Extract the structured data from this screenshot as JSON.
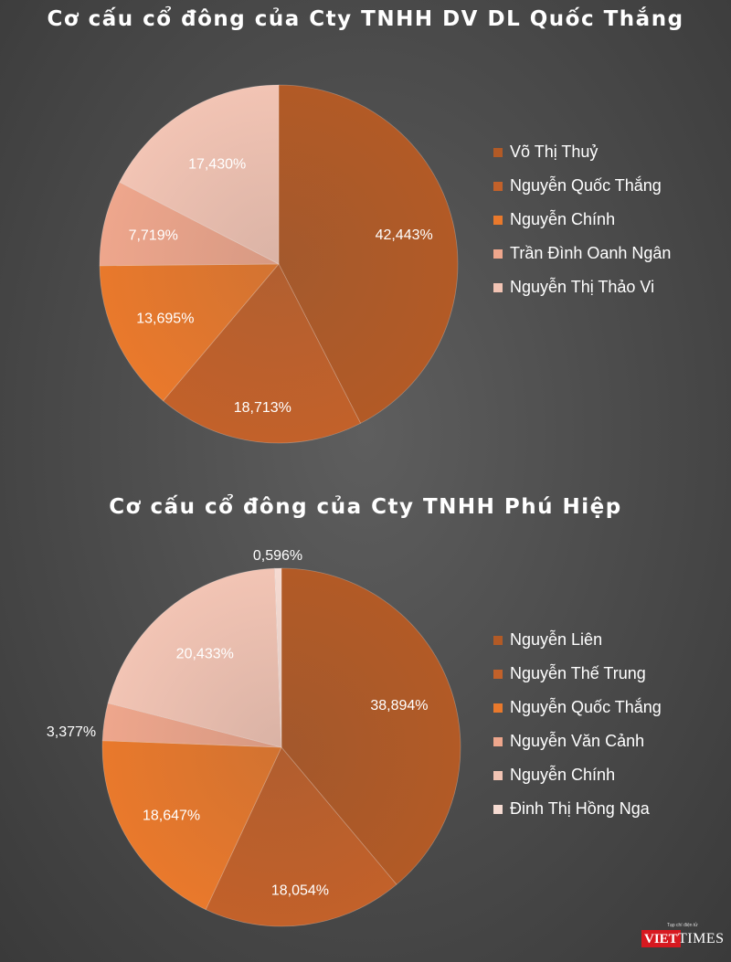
{
  "colors": {
    "background": "#4a4a4a",
    "series": [
      "#b25a26",
      "#c2612a",
      "#e9792c",
      "#eea68c",
      "#f2c4b4",
      "#f6dbd2"
    ]
  },
  "chart_data": [
    {
      "type": "pie",
      "title": "Cơ cấu cổ đông của Cty TNHH DV DL Quốc Thắng",
      "legend_position": "right",
      "labels": [
        "Võ Thị Thuỷ",
        "Nguyễn Quốc Thắng",
        "Nguyễn Chính",
        "Trần Đình Oanh Ngân",
        "Nguyễn Thị Thảo Vi"
      ],
      "values": [
        42.443,
        18.713,
        13.695,
        7.719,
        17.43
      ],
      "value_labels": [
        "42,443%",
        "18,713%",
        "13,695%",
        "7,719%",
        "17,430%"
      ],
      "colors": [
        "#b25a26",
        "#c2612a",
        "#e9792c",
        "#eea68c",
        "#f2c4b4"
      ]
    },
    {
      "type": "pie",
      "title": "Cơ cấu cổ đông của Cty TNHH Phú Hiệp",
      "legend_position": "right",
      "labels": [
        "Nguyễn Liên",
        "Nguyễn Thế Trung",
        "Nguyễn Quốc Thắng",
        "Nguyễn Văn Cảnh",
        "Nguyễn Chính",
        "Đinh Thị Hồng Nga"
      ],
      "values": [
        38.894,
        18.054,
        18.647,
        3.377,
        20.433,
        0.596
      ],
      "value_labels": [
        "38,894%",
        "18,054%",
        "18,647%",
        "3,377%",
        "20,433%",
        "0,596%"
      ],
      "colors": [
        "#b25a26",
        "#c2612a",
        "#e9792c",
        "#eea68c",
        "#f2c4b4",
        "#f6dbd2"
      ]
    }
  ],
  "logo": {
    "brand_part1": "VIET",
    "brand_part2": "TIMES",
    "tagline": "Tạp chí điện tử"
  }
}
